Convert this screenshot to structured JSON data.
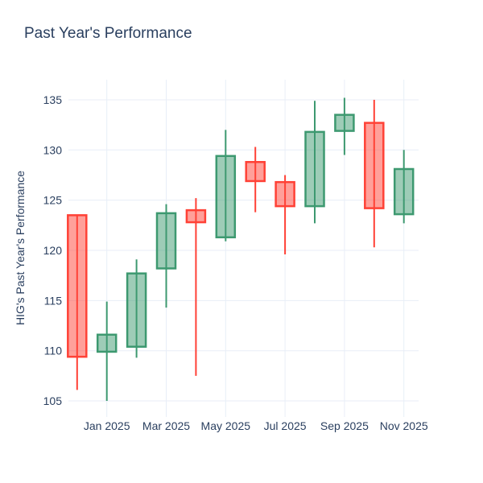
{
  "title": "Past Year's Performance",
  "chart_data": {
    "type": "candlestick",
    "title": "Past Year's Performance",
    "xlabel": "",
    "ylabel": "HIG's Past Year's Performance",
    "legend": "none",
    "grid": true,
    "background": "#ffffff",
    "grid_color": "#e8eef7",
    "text_color": "#2a3f5f",
    "increasing_color": "#3D9970",
    "increasing_fill": "rgba(61,153,112,0.5)",
    "decreasing_color": "#FF4136",
    "decreasing_fill": "rgba(255,65,54,0.5)",
    "y_ticks": [
      105,
      110,
      115,
      120,
      125,
      130,
      135
    ],
    "ylim": [
      103.4,
      137.0
    ],
    "x_tick_labels": [
      "Jan 2025",
      "Mar 2025",
      "May 2025",
      "Jul 2025",
      "Sep 2025",
      "Nov 2025"
    ],
    "x_tick_indices": [
      1,
      3,
      5,
      7,
      9,
      11
    ],
    "categories": [
      "Dec 2024",
      "Jan 2025",
      "Feb 2025",
      "Mar 2025",
      "Apr 2025",
      "May 2025",
      "Jun 2025",
      "Jul 2025",
      "Aug 2025",
      "Sep 2025",
      "Oct 2025",
      "Nov 2025"
    ],
    "ohlc": [
      {
        "date": "Dec 2024",
        "open": 123.5,
        "high": 123.5,
        "low": 106.1,
        "close": 109.4,
        "direction": "decreasing"
      },
      {
        "date": "Jan 2025",
        "open": 109.9,
        "high": 114.9,
        "low": 105.0,
        "close": 111.6,
        "direction": "increasing"
      },
      {
        "date": "Feb 2025",
        "open": 110.4,
        "high": 119.1,
        "low": 109.3,
        "close": 117.7,
        "direction": "increasing"
      },
      {
        "date": "Mar 2025",
        "open": 118.2,
        "high": 124.6,
        "low": 114.3,
        "close": 123.7,
        "direction": "increasing"
      },
      {
        "date": "Apr 2025",
        "open": 124.0,
        "high": 125.2,
        "low": 107.5,
        "close": 122.8,
        "direction": "decreasing"
      },
      {
        "date": "May 2025",
        "open": 121.3,
        "high": 132.0,
        "low": 120.9,
        "close": 129.4,
        "direction": "increasing"
      },
      {
        "date": "Jun 2025",
        "open": 128.8,
        "high": 130.3,
        "low": 123.8,
        "close": 126.9,
        "direction": "decreasing"
      },
      {
        "date": "Jul 2025",
        "open": 126.8,
        "high": 127.5,
        "low": 119.6,
        "close": 124.4,
        "direction": "decreasing"
      },
      {
        "date": "Aug 2025",
        "open": 124.4,
        "high": 134.9,
        "low": 122.7,
        "close": 131.8,
        "direction": "increasing"
      },
      {
        "date": "Sep 2025",
        "open": 131.9,
        "high": 135.2,
        "low": 129.5,
        "close": 133.5,
        "direction": "increasing"
      },
      {
        "date": "Oct 2025",
        "open": 132.7,
        "high": 135.0,
        "low": 120.3,
        "close": 124.2,
        "direction": "decreasing"
      },
      {
        "date": "Nov 2025",
        "open": 123.6,
        "high": 130.0,
        "low": 122.7,
        "close": 128.1,
        "direction": "increasing"
      }
    ]
  }
}
